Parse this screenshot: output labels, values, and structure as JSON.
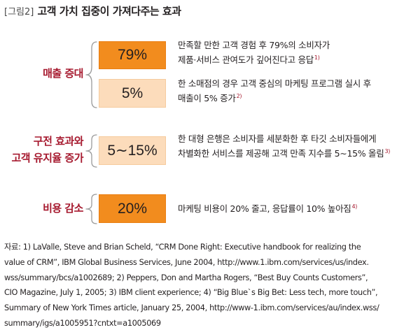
{
  "figure": {
    "prefix": "[그림2]",
    "title": "고객 가치 집중이 가져다주는 효과"
  },
  "colors": {
    "accent_red": "#a6192e",
    "box_dark": "#f28c1e",
    "box_light": "#fcdcbb"
  },
  "groups": [
    {
      "category_lines": [
        "매출 증대"
      ],
      "items": [
        {
          "value": "79%",
          "desc_lines": [
            "만족할 만한 고객 경험 후 79%의 소비자가",
            "제품·서비스 관여도가 깊어진다고 응답"
          ],
          "footnote": "1)"
        },
        {
          "value": "5%",
          "desc_lines": [
            "한 소매점의 경우 고객 중심의 마케팅 프로그램 실시 후",
            "매출이 5% 증가"
          ],
          "footnote": "2)"
        }
      ]
    },
    {
      "category_lines": [
        "구전 효과와",
        "고객 유지율 증가"
      ],
      "items": [
        {
          "value": "5∼15%",
          "desc_lines": [
            "한 대형 은행은 소비자를 세분화한 후 타깃 소비자들에게",
            "차별화한 서비스를 제공해 고객 만족 지수를 5∼15% 올림"
          ],
          "footnote": "3)"
        }
      ]
    },
    {
      "category_lines": [
        "비용 감소"
      ],
      "items": [
        {
          "value": "20%",
          "desc_lines": [
            "마케팅 비용이 20% 줄고, 응답률이 10% 높아짐"
          ],
          "footnote": "4)"
        }
      ]
    }
  ],
  "source_lines": [
    "자료: 1) LaValle, Steve and Brian Scheld, “CRM Done Right: Executive handbook for realizing the",
    "value of CRM”, IBM Global Business Services, June 2004, http://www.1.ibm.com/services/us/index.",
    "wss/summary/bcs/a1002689; 2) Peppers, Don and Martha Rogers, “Best Buy Counts Customers”,",
    "CIO Magazine, July 1, 2005; 3) IBM client experience; 4) “Big Blue`s Big Bet: Less tech, more touch”,",
    "Summary of New York Times article, January 25, 2004, http://www-1.ibm.com/services/au/index.wss/",
    "summary/igs/a1005951?cntxt=a1005069"
  ]
}
